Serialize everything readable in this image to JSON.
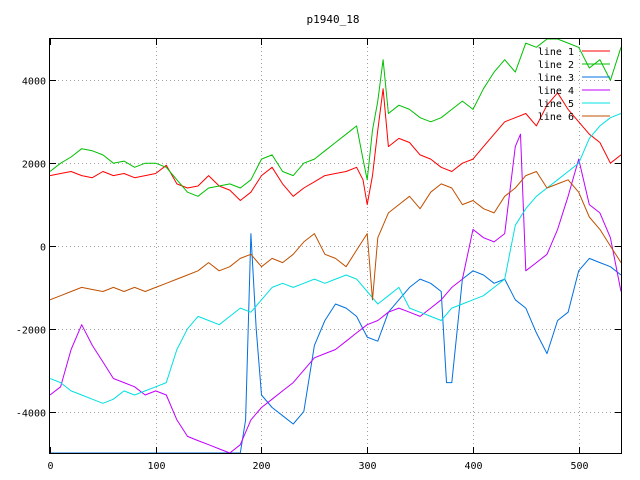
{
  "chart_data": {
    "type": "line",
    "title": "p1940_18",
    "xlabel": "",
    "ylabel": "",
    "xlim": [
      0,
      540
    ],
    "ylim": [
      -5000,
      5000
    ],
    "xticks": [
      0,
      100,
      200,
      300,
      400,
      500
    ],
    "yticks": [
      -4000,
      -2000,
      0,
      2000,
      4000
    ],
    "grid": true,
    "legend_position": "top-right",
    "series": [
      {
        "name": "line 1",
        "color": "#ff0000",
        "x": [
          0,
          10,
          20,
          30,
          40,
          50,
          60,
          70,
          80,
          90,
          100,
          110,
          120,
          130,
          140,
          150,
          160,
          170,
          180,
          190,
          200,
          210,
          220,
          230,
          240,
          250,
          260,
          270,
          280,
          290,
          296,
          300,
          305,
          310,
          315,
          320,
          330,
          340,
          350,
          360,
          370,
          380,
          390,
          400,
          410,
          420,
          430,
          440,
          450,
          460,
          470,
          480,
          490,
          500,
          510,
          520,
          530,
          540
        ],
        "y": [
          1700,
          1750,
          1800,
          1700,
          1650,
          1800,
          1700,
          1750,
          1650,
          1700,
          1750,
          1950,
          1500,
          1400,
          1450,
          1700,
          1450,
          1350,
          1100,
          1300,
          1700,
          1900,
          1500,
          1200,
          1400,
          1550,
          1700,
          1750,
          1800,
          1900,
          1600,
          1000,
          1700,
          2800,
          3800,
          2400,
          2600,
          2500,
          2200,
          2100,
          1900,
          1800,
          2000,
          2100,
          2400,
          2700,
          3000,
          3100,
          3200,
          2900,
          3400,
          3700,
          3300,
          3000,
          2700,
          2500,
          2000,
          2200
        ]
      },
      {
        "name": "line 2",
        "color": "#00c000",
        "x": [
          0,
          10,
          20,
          30,
          40,
          50,
          60,
          70,
          80,
          90,
          100,
          110,
          120,
          130,
          140,
          150,
          160,
          170,
          180,
          190,
          200,
          210,
          220,
          230,
          240,
          250,
          260,
          270,
          280,
          290,
          296,
          300,
          305,
          310,
          315,
          320,
          330,
          340,
          350,
          360,
          370,
          380,
          390,
          400,
          410,
          420,
          430,
          440,
          450,
          460,
          470,
          480,
          490,
          500,
          510,
          520,
          530,
          540
        ],
        "y": [
          1800,
          2000,
          2150,
          2350,
          2300,
          2200,
          2000,
          2050,
          1900,
          2000,
          2000,
          1900,
          1600,
          1300,
          1200,
          1400,
          1450,
          1500,
          1400,
          1600,
          2100,
          2200,
          1800,
          1700,
          2000,
          2100,
          2300,
          2500,
          2700,
          2900,
          2100,
          1600,
          2800,
          3500,
          4500,
          3200,
          3400,
          3300,
          3100,
          3000,
          3100,
          3300,
          3500,
          3300,
          3800,
          4200,
          4500,
          4200,
          4900,
          4800,
          5000,
          5000,
          4900,
          4800,
          4300,
          4500,
          4000,
          4800
        ]
      },
      {
        "name": "line 3",
        "color": "#0070e0",
        "x": [
          0,
          10,
          20,
          30,
          40,
          50,
          60,
          70,
          80,
          90,
          100,
          110,
          120,
          130,
          140,
          150,
          160,
          170,
          180,
          185,
          190,
          195,
          200,
          210,
          220,
          230,
          240,
          250,
          260,
          270,
          280,
          290,
          300,
          310,
          320,
          330,
          340,
          350,
          360,
          370,
          375,
          380,
          390,
          400,
          410,
          420,
          430,
          440,
          450,
          460,
          470,
          480,
          490,
          500,
          510,
          520,
          530,
          540
        ],
        "y": [
          -5000,
          -5000,
          -5000,
          -5000,
          -5000,
          -5000,
          -5000,
          -5000,
          -5000,
          -5000,
          -5000,
          -5000,
          -5000,
          -5000,
          -5000,
          -5000,
          -5000,
          -5000,
          -5000,
          -4200,
          300,
          -2000,
          -3600,
          -3900,
          -4100,
          -4300,
          -4000,
          -2400,
          -1800,
          -1400,
          -1500,
          -1700,
          -2200,
          -2300,
          -1600,
          -1300,
          -1000,
          -800,
          -900,
          -1100,
          -3300,
          -3300,
          -800,
          -600,
          -700,
          -900,
          -800,
          -1300,
          -1500,
          -2100,
          -2600,
          -1800,
          -1600,
          -600,
          -300,
          -400,
          -500,
          -700
        ]
      },
      {
        "name": "line 4",
        "color": "#c000ff",
        "x": [
          0,
          10,
          20,
          30,
          40,
          50,
          60,
          70,
          80,
          90,
          100,
          110,
          120,
          130,
          140,
          150,
          160,
          170,
          180,
          190,
          200,
          210,
          220,
          230,
          240,
          250,
          260,
          270,
          280,
          290,
          300,
          310,
          320,
          330,
          340,
          350,
          360,
          370,
          380,
          390,
          400,
          410,
          420,
          430,
          440,
          445,
          450,
          460,
          470,
          480,
          490,
          500,
          510,
          520,
          530,
          540
        ],
        "y": [
          -3600,
          -3400,
          -2500,
          -1900,
          -2400,
          -2800,
          -3200,
          -3300,
          -3400,
          -3600,
          -3500,
          -3600,
          -4200,
          -4600,
          -4700,
          -4800,
          -4900,
          -5000,
          -4800,
          -4200,
          -3900,
          -3700,
          -3500,
          -3300,
          -3000,
          -2700,
          -2600,
          -2500,
          -2300,
          -2100,
          -1900,
          -1800,
          -1600,
          -1500,
          -1600,
          -1700,
          -1500,
          -1300,
          -1000,
          -800,
          400,
          200,
          100,
          300,
          2400,
          2700,
          -600,
          -400,
          -200,
          400,
          1200,
          2100,
          1000,
          800,
          200,
          -1100
        ]
      },
      {
        "name": "line 5",
        "color": "#00e0e0",
        "x": [
          0,
          10,
          20,
          30,
          40,
          50,
          60,
          70,
          80,
          90,
          100,
          110,
          120,
          130,
          140,
          150,
          160,
          170,
          180,
          190,
          200,
          210,
          220,
          230,
          240,
          250,
          260,
          270,
          280,
          290,
          300,
          310,
          320,
          330,
          340,
          350,
          360,
          370,
          380,
          390,
          400,
          410,
          420,
          430,
          440,
          450,
          460,
          470,
          480,
          490,
          500,
          510,
          520,
          530,
          540
        ],
        "y": [
          -3200,
          -3300,
          -3500,
          -3600,
          -3700,
          -3800,
          -3700,
          -3500,
          -3600,
          -3500,
          -3400,
          -3300,
          -2500,
          -2000,
          -1700,
          -1800,
          -1900,
          -1700,
          -1500,
          -1600,
          -1300,
          -1000,
          -900,
          -1000,
          -900,
          -800,
          -900,
          -800,
          -700,
          -800,
          -1100,
          -1400,
          -1200,
          -1000,
          -1500,
          -1600,
          -1700,
          -1800,
          -1500,
          -1400,
          -1300,
          -1200,
          -1000,
          -800,
          500,
          900,
          1200,
          1400,
          1600,
          1800,
          2000,
          2600,
          2900,
          3100,
          3200
        ]
      },
      {
        "name": "line 6",
        "color": "#c05000",
        "x": [
          0,
          10,
          20,
          30,
          40,
          50,
          60,
          70,
          80,
          90,
          100,
          110,
          120,
          130,
          140,
          150,
          160,
          170,
          180,
          190,
          200,
          210,
          220,
          230,
          240,
          250,
          260,
          270,
          280,
          290,
          300,
          305,
          310,
          320,
          330,
          340,
          350,
          360,
          370,
          380,
          390,
          400,
          410,
          420,
          430,
          440,
          450,
          460,
          470,
          480,
          490,
          500,
          510,
          520,
          530,
          540
        ],
        "y": [
          -1300,
          -1200,
          -1100,
          -1000,
          -1050,
          -1100,
          -1000,
          -1100,
          -1000,
          -1100,
          -1000,
          -900,
          -800,
          -700,
          -600,
          -400,
          -600,
          -500,
          -300,
          -200,
          -500,
          -300,
          -400,
          -200,
          100,
          300,
          -200,
          -300,
          -500,
          -100,
          300,
          -1300,
          200,
          800,
          1000,
          1200,
          900,
          1300,
          1500,
          1400,
          1000,
          1100,
          900,
          800,
          1200,
          1400,
          1700,
          1800,
          1400,
          1500,
          1600,
          1300,
          700,
          400,
          0,
          -400
        ]
      }
    ]
  }
}
